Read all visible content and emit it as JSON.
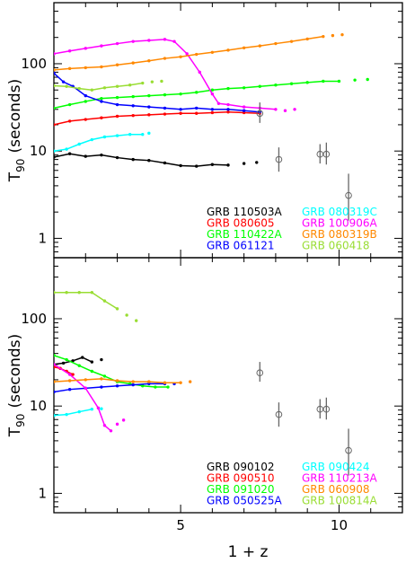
{
  "chart_data": {
    "type": "scatter",
    "xlabel": "1 + z",
    "x_ticks": [
      "5",
      "10"
    ],
    "xlim": [
      1.0,
      12.0
    ],
    "panels": [
      {
        "ylabel_main": "T",
        "ylabel_sub": "90",
        "ylabel_unit": "(seconds)",
        "y_scale": "log",
        "ylim": [
          0.6,
          500
        ],
        "y_ticks": [
          {
            "value": 1,
            "label": "1"
          },
          {
            "value": 10,
            "label": "10"
          },
          {
            "value": 100,
            "label": "100"
          }
        ],
        "observed_points": [
          {
            "x": 7.5,
            "y": 27,
            "err_lo": 21,
            "err_hi": 36
          },
          {
            "x": 8.1,
            "y": 8.0,
            "err_lo": 5.8,
            "err_hi": 11
          },
          {
            "x": 9.4,
            "y": 9.2,
            "err_lo": 7.2,
            "err_hi": 12
          },
          {
            "x": 9.6,
            "y": 9.2,
            "err_lo": 7.0,
            "err_hi": 12.5
          },
          {
            "x": 10.3,
            "y": 3.1,
            "err_lo": 1.6,
            "err_hi": 5.5
          }
        ],
        "series": [
          {
            "name": "GRB 110503A",
            "color": "#000000",
            "points": [
              [
                1.0,
                8.5
              ],
              [
                1.5,
                9.3
              ],
              [
                2.0,
                8.7
              ],
              [
                2.5,
                9.0
              ],
              [
                3.0,
                8.4
              ],
              [
                3.5,
                8.0
              ],
              [
                4.0,
                7.8
              ],
              [
                4.5,
                7.3
              ],
              [
                5.0,
                6.8
              ],
              [
                5.5,
                6.7
              ],
              [
                6.0,
                7.0
              ],
              [
                6.5,
                6.9
              ]
            ],
            "tail": [
              [
                7.0,
                7.2
              ],
              [
                7.4,
                7.4
              ]
            ]
          },
          {
            "name": "GRB 080605",
            "color": "#ff0000",
            "points": [
              [
                1.0,
                20
              ],
              [
                1.5,
                22
              ],
              [
                2.0,
                23
              ],
              [
                2.5,
                24
              ],
              [
                3.0,
                25
              ],
              [
                3.5,
                25.5
              ],
              [
                4.0,
                26
              ],
              [
                4.5,
                26.5
              ],
              [
                5.0,
                27
              ],
              [
                5.5,
                27
              ],
              [
                6.0,
                27.5
              ],
              [
                6.5,
                28
              ],
              [
                7.0,
                27.5
              ],
              [
                7.5,
                27
              ]
            ],
            "tail": []
          },
          {
            "name": "GRB 110422A",
            "color": "#00ff00",
            "points": [
              [
                1.0,
                31
              ],
              [
                1.5,
                34
              ],
              [
                2.0,
                37
              ],
              [
                2.5,
                40
              ],
              [
                3.0,
                41
              ],
              [
                3.5,
                42
              ],
              [
                4.0,
                43
              ],
              [
                4.5,
                44
              ],
              [
                5.0,
                45
              ],
              [
                5.5,
                47
              ],
              [
                6.0,
                50
              ],
              [
                6.5,
                52
              ],
              [
                7.0,
                53
              ],
              [
                7.5,
                55
              ],
              [
                8.0,
                57
              ],
              [
                8.5,
                59
              ],
              [
                9.0,
                61
              ],
              [
                9.5,
                63
              ],
              [
                10.0,
                63
              ]
            ],
            "tail": [
              [
                10.5,
                65
              ],
              [
                10.9,
                66
              ]
            ]
          },
          {
            "name": "GRB 061121",
            "color": "#0000ff",
            "points": [
              [
                1.0,
                78
              ],
              [
                1.3,
                62
              ],
              [
                1.6,
                55
              ],
              [
                2.0,
                43
              ],
              [
                2.5,
                37
              ],
              [
                3.0,
                34
              ],
              [
                3.5,
                33
              ],
              [
                4.0,
                32
              ],
              [
                4.5,
                31
              ],
              [
                5.0,
                30
              ],
              [
                5.5,
                31
              ],
              [
                6.0,
                30
              ],
              [
                6.5,
                30
              ],
              [
                7.0,
                29
              ],
              [
                7.5,
                28
              ]
            ],
            "tail": []
          },
          {
            "name": "GRB 080319C",
            "color": "#00ffff",
            "points": [
              [
                1.0,
                10
              ],
              [
                1.4,
                10.5
              ],
              [
                1.8,
                12
              ],
              [
                2.2,
                13.5
              ],
              [
                2.6,
                14.5
              ],
              [
                3.0,
                15
              ],
              [
                3.4,
                15.5
              ],
              [
                3.8,
                15.5
              ]
            ],
            "tail": [
              [
                4.0,
                16
              ]
            ]
          },
          {
            "name": "GRB 100906A",
            "color": "#ff00ff",
            "points": [
              [
                1.0,
                130
              ],
              [
                1.5,
                140
              ],
              [
                2.0,
                150
              ],
              [
                2.5,
                160
              ],
              [
                3.0,
                170
              ],
              [
                3.5,
                180
              ],
              [
                4.0,
                185
              ],
              [
                4.5,
                190
              ],
              [
                4.8,
                180
              ],
              [
                5.2,
                130
              ],
              [
                5.6,
                80
              ],
              [
                6.0,
                45
              ],
              [
                6.2,
                35
              ],
              [
                6.5,
                34
              ],
              [
                7.0,
                32
              ],
              [
                7.5,
                31
              ],
              [
                8.0,
                30
              ]
            ],
            "tail": [
              [
                8.3,
                29
              ],
              [
                8.6,
                30
              ]
            ]
          },
          {
            "name": "GRB 080319B",
            "color": "#ff8800",
            "points": [
              [
                1.0,
                85
              ],
              [
                1.5,
                88
              ],
              [
                2.0,
                90
              ],
              [
                2.5,
                92
              ],
              [
                3.0,
                97
              ],
              [
                3.5,
                102
              ],
              [
                4.0,
                108
              ],
              [
                4.5,
                115
              ],
              [
                5.0,
                120
              ],
              [
                5.5,
                128
              ],
              [
                6.0,
                135
              ],
              [
                6.5,
                143
              ],
              [
                7.0,
                152
              ],
              [
                7.5,
                160
              ],
              [
                8.0,
                170
              ],
              [
                8.5,
                180
              ],
              [
                9.0,
                192
              ],
              [
                9.5,
                205
              ]
            ],
            "tail": [
              [
                9.8,
                210
              ],
              [
                10.1,
                215
              ]
            ]
          },
          {
            "name": "GRB 060418",
            "color": "#99dd33",
            "points": [
              [
                1.0,
                56
              ],
              [
                1.4,
                55
              ],
              [
                1.8,
                52
              ],
              [
                2.2,
                50
              ],
              [
                2.6,
                53
              ],
              [
                3.0,
                55
              ],
              [
                3.4,
                57
              ],
              [
                3.8,
                60
              ]
            ],
            "tail": [
              [
                4.1,
                62
              ],
              [
                4.4,
                63
              ]
            ]
          }
        ]
      },
      {
        "ylabel_main": "T",
        "ylabel_sub": "90",
        "ylabel_unit": "(seconds)",
        "y_scale": "log",
        "ylim": [
          0.6,
          500
        ],
        "y_ticks": [
          {
            "value": 1,
            "label": "1"
          },
          {
            "value": 10,
            "label": "10"
          },
          {
            "value": 100,
            "label": "100"
          }
        ],
        "observed_points": [
          {
            "x": 7.5,
            "y": 24,
            "err_lo": 19,
            "err_hi": 32
          },
          {
            "x": 8.1,
            "y": 8.0,
            "err_lo": 5.8,
            "err_hi": 11
          },
          {
            "x": 9.4,
            "y": 9.2,
            "err_lo": 7.2,
            "err_hi": 12
          },
          {
            "x": 9.6,
            "y": 9.2,
            "err_lo": 7.0,
            "err_hi": 12.5
          },
          {
            "x": 10.3,
            "y": 3.1,
            "err_lo": 1.6,
            "err_hi": 5.5
          }
        ],
        "series": [
          {
            "name": "GRB 090102",
            "color": "#000000",
            "points": [
              [
                1.0,
                30
              ],
              [
                1.3,
                31
              ],
              [
                1.6,
                33
              ],
              [
                1.9,
                36
              ],
              [
                2.2,
                32
              ]
            ],
            "tail": [
              [
                2.5,
                34
              ]
            ]
          },
          {
            "name": "GRB 090510",
            "color": "#ff0000",
            "points": [
              [
                1.0,
                28
              ],
              [
                1.2,
                27
              ],
              [
                1.4,
                25
              ],
              [
                1.6,
                23
              ]
            ],
            "tail": []
          },
          {
            "name": "GRB 091020",
            "color": "#00ff00",
            "points": [
              [
                1.0,
                38
              ],
              [
                1.4,
                34
              ],
              [
                1.8,
                29
              ],
              [
                2.2,
                25
              ],
              [
                2.6,
                22
              ],
              [
                3.0,
                19
              ],
              [
                3.4,
                18
              ],
              [
                3.8,
                17
              ],
              [
                4.2,
                16.5
              ],
              [
                4.6,
                16.5
              ]
            ],
            "tail": []
          },
          {
            "name": "GRB 050525A",
            "color": "#0000ff",
            "points": [
              [
                1.0,
                14.5
              ],
              [
                1.5,
                15.5
              ],
              [
                2.0,
                16
              ],
              [
                2.5,
                16.5
              ],
              [
                3.0,
                17
              ],
              [
                3.5,
                17.5
              ],
              [
                4.0,
                18
              ],
              [
                4.5,
                18
              ]
            ],
            "tail": [
              [
                4.8,
                18
              ]
            ]
          },
          {
            "name": "GRB 090424",
            "color": "#00ffff",
            "points": [
              [
                1.0,
                7.8
              ],
              [
                1.4,
                8.0
              ],
              [
                1.8,
                8.6
              ],
              [
                2.2,
                9.2
              ]
            ],
            "tail": [
              [
                2.5,
                9.3
              ]
            ]
          },
          {
            "name": "GRB 110213A",
            "color": "#ff00ff",
            "points": [
              [
                1.0,
                30
              ],
              [
                1.5,
                23
              ],
              [
                2.0,
                16
              ],
              [
                2.4,
                9.5
              ],
              [
                2.6,
                6
              ],
              [
                2.8,
                5.2
              ]
            ],
            "tail": [
              [
                3.0,
                6.2
              ],
              [
                3.2,
                6.9
              ]
            ]
          },
          {
            "name": "GRB 060908",
            "color": "#ff8800",
            "points": [
              [
                1.0,
                19
              ],
              [
                1.5,
                19.5
              ],
              [
                2.0,
                20
              ],
              [
                2.5,
                20.5
              ],
              [
                3.0,
                19.5
              ],
              [
                3.5,
                19
              ],
              [
                4.0,
                19
              ],
              [
                4.5,
                18.5
              ],
              [
                5.0,
                18.5
              ]
            ],
            "tail": [
              [
                5.3,
                19
              ]
            ]
          },
          {
            "name": "GRB 100814A",
            "color": "#99dd33",
            "points": [
              [
                1.0,
                200
              ],
              [
                1.4,
                200
              ],
              [
                1.8,
                200
              ],
              [
                2.2,
                200
              ],
              [
                2.6,
                160
              ],
              [
                3.0,
                130
              ]
            ],
            "tail": [
              [
                3.3,
                110
              ],
              [
                3.6,
                95
              ]
            ]
          }
        ]
      }
    ]
  }
}
